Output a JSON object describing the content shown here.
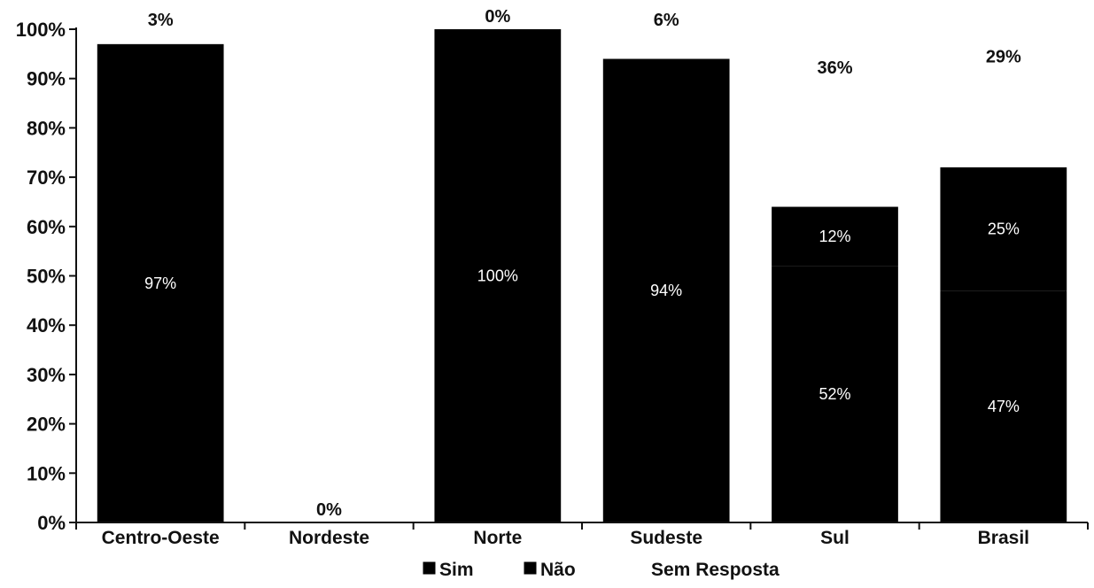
{
  "chart_data": {
    "type": "bar",
    "stacked": true,
    "categories": [
      "Centro-Oeste",
      "Nordeste",
      "Norte",
      "Sudeste",
      "Sul",
      "Brasil"
    ],
    "series": [
      {
        "name": "Sim",
        "color": "#000000",
        "values": [
          97,
          0,
          100,
          94,
          52,
          47
        ],
        "labels": [
          "97%",
          "",
          "100%",
          "94%",
          "52%",
          "47%"
        ]
      },
      {
        "name": "Não",
        "color": "#000000",
        "values": [
          0,
          0,
          0,
          0,
          12,
          25
        ],
        "labels": [
          "",
          "",
          "",
          "",
          "12%",
          "25%"
        ]
      },
      {
        "name": "Sem Resposta",
        "color": "#ffffff",
        "values": [
          3,
          0,
          0,
          6,
          36,
          29
        ],
        "labels": [
          "3%",
          "0%",
          "0%",
          "6%",
          "36%",
          "29%"
        ]
      }
    ],
    "ylim": [
      0,
      100
    ],
    "yticks": [
      "0%",
      "10%",
      "20%",
      "30%",
      "40%",
      "50%",
      "60%",
      "70%",
      "80%",
      "90%",
      "100%"
    ],
    "legend_position": "bottom",
    "grid": false
  }
}
